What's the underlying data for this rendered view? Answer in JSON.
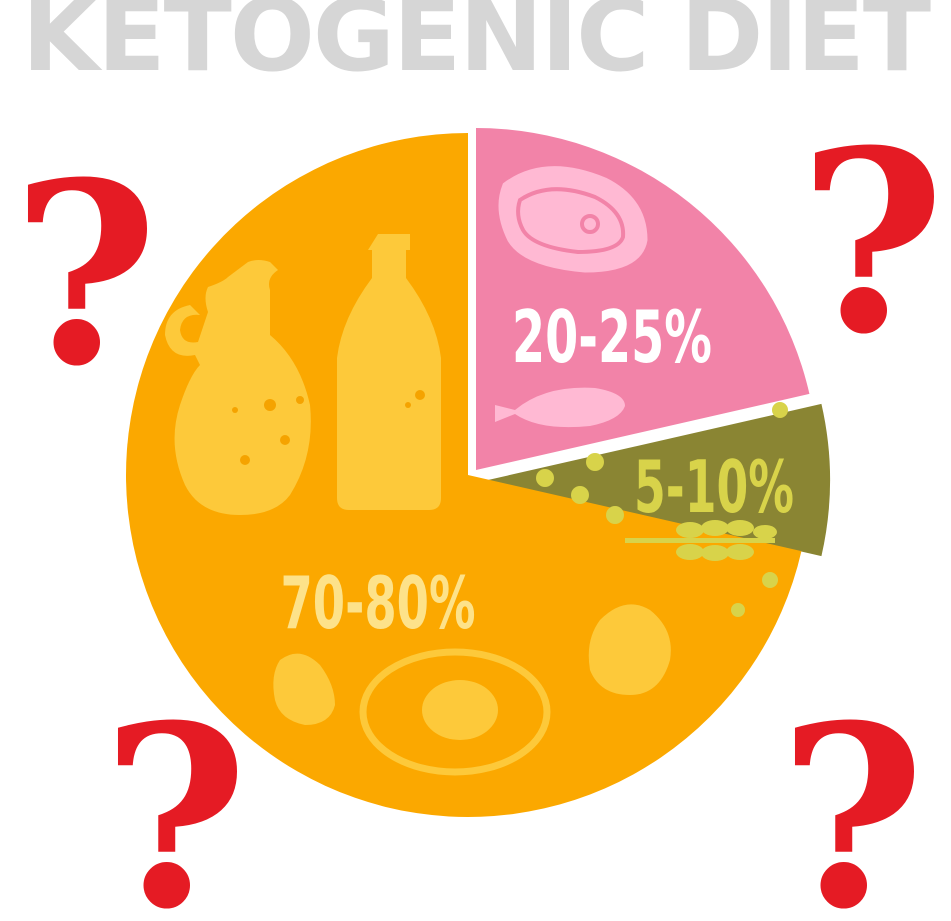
{
  "title": "KETOGENIC DIET",
  "colors": {
    "fat": "#fba800",
    "protein": "#f283a8",
    "carbs": "#8a8533",
    "fat_label": "#fde28a",
    "protein_label": "#ffffff",
    "carbs_label": "#d8d34a",
    "question": "#e51b24",
    "title": "#d6d6d6"
  },
  "question_mark": "?",
  "icons": [
    "jug-icon",
    "bottle-icon",
    "steak-icon",
    "fish-icon",
    "wheat-icon",
    "egg-icon",
    "nut-icon"
  ],
  "chart_data": {
    "type": "pie",
    "title": "KETOGENIC DIET",
    "slices": [
      {
        "key": "protein",
        "label": "20-25%",
        "value": 22.5
      },
      {
        "key": "carbs",
        "label": "5-10%",
        "value": 7.5
      },
      {
        "key": "fat",
        "label": "70-80%",
        "value": 75
      }
    ]
  }
}
